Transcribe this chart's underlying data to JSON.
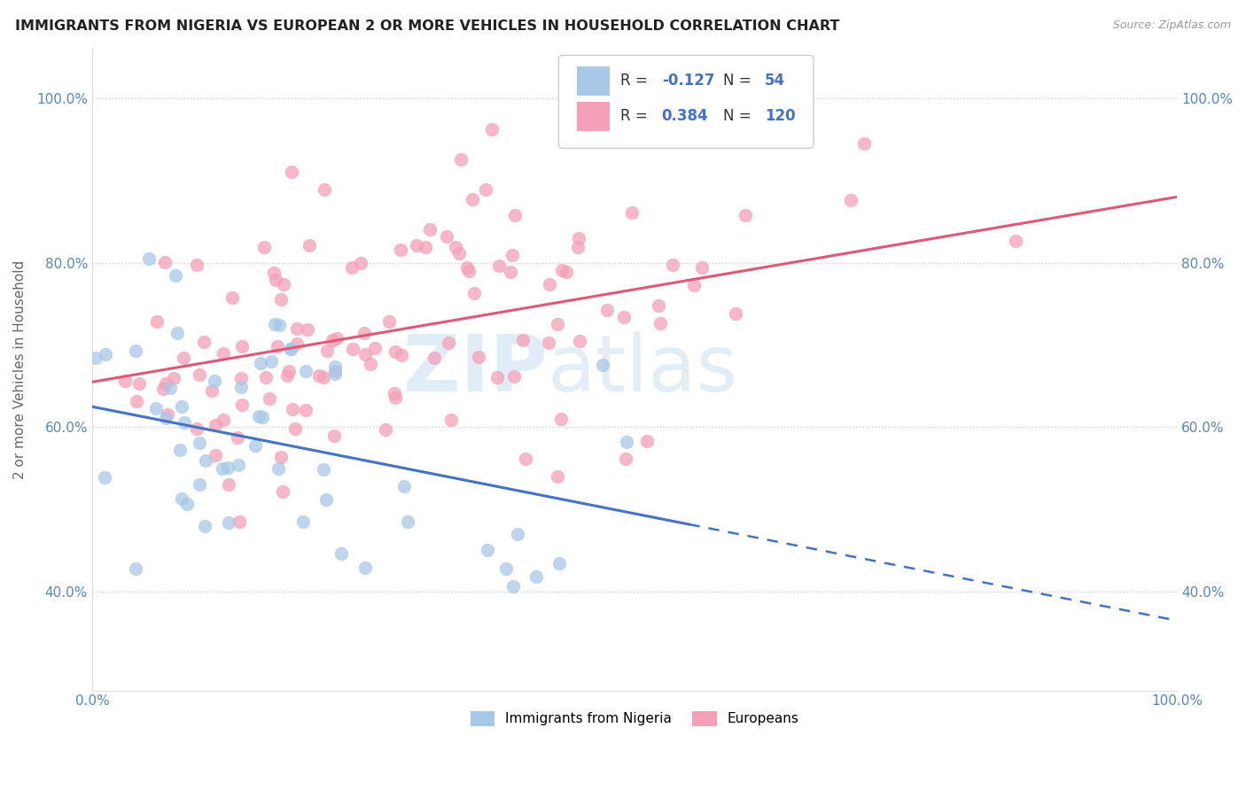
{
  "title": "IMMIGRANTS FROM NIGERIA VS EUROPEAN 2 OR MORE VEHICLES IN HOUSEHOLD CORRELATION CHART",
  "source": "Source: ZipAtlas.com",
  "ylabel": "2 or more Vehicles in Household",
  "legend_labels": [
    "Immigrants from Nigeria",
    "Europeans"
  ],
  "r_nigeria": -0.127,
  "n_nigeria": 54,
  "r_european": 0.384,
  "n_european": 120,
  "xlim": [
    0.0,
    1.0
  ],
  "ylim": [
    0.28,
    1.06
  ],
  "xtick_labels": [
    "0.0%",
    "100.0%"
  ],
  "ytick_labels": [
    "40.0%",
    "60.0%",
    "80.0%",
    "100.0%"
  ],
  "ytick_values": [
    0.4,
    0.6,
    0.8,
    1.0
  ],
  "color_nigeria": "#a8c8e8",
  "color_european": "#f4a0b8",
  "line_color_nigeria": "#4472c4",
  "line_color_european": "#e05878",
  "watermark_color": "#c8dff0",
  "nigeria_line_solid_end": 0.55,
  "nigeria_line_start_y": 0.625,
  "nigeria_line_end_y": 0.365,
  "european_line_start_y": 0.655,
  "european_line_end_y": 0.88,
  "nigeria_seed": 77,
  "european_seed": 42
}
